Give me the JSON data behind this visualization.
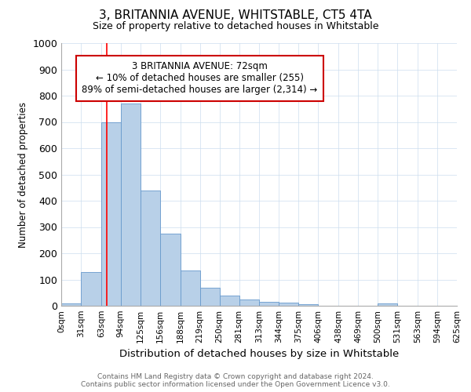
{
  "title": "3, BRITANNIA AVENUE, WHITSTABLE, CT5 4TA",
  "subtitle": "Size of property relative to detached houses in Whitstable",
  "xlabel": "Distribution of detached houses by size in Whitstable",
  "ylabel": "Number of detached properties",
  "bin_labels": [
    "0sqm",
    "31sqm",
    "63sqm",
    "94sqm",
    "125sqm",
    "156sqm",
    "188sqm",
    "219sqm",
    "250sqm",
    "281sqm",
    "313sqm",
    "344sqm",
    "375sqm",
    "406sqm",
    "438sqm",
    "469sqm",
    "500sqm",
    "531sqm",
    "563sqm",
    "594sqm",
    "625sqm"
  ],
  "bin_edges": [
    0,
    31,
    63,
    94,
    125,
    156,
    188,
    219,
    250,
    281,
    313,
    344,
    375,
    406,
    438,
    469,
    500,
    531,
    563,
    594,
    625
  ],
  "bar_heights": [
    8,
    128,
    700,
    770,
    440,
    275,
    133,
    70,
    40,
    25,
    15,
    13,
    7,
    0,
    0,
    0,
    10,
    0,
    0,
    0
  ],
  "bar_color": "#b8d0e8",
  "bar_edge_color": "#6699cc",
  "red_line_x": 72,
  "ylim": [
    0,
    1000
  ],
  "yticks": [
    0,
    100,
    200,
    300,
    400,
    500,
    600,
    700,
    800,
    900,
    1000
  ],
  "annotation_text": "3 BRITANNIA AVENUE: 72sqm\n← 10% of detached houses are smaller (255)\n89% of semi-detached houses are larger (2,314) →",
  "annotation_box_color": "#ffffff",
  "annotation_box_edge": "#cc0000",
  "footer_line1": "Contains HM Land Registry data © Crown copyright and database right 2024.",
  "footer_line2": "Contains public sector information licensed under the Open Government Licence v3.0.",
  "background_color": "#ffffff",
  "grid_color": "#ccddee"
}
